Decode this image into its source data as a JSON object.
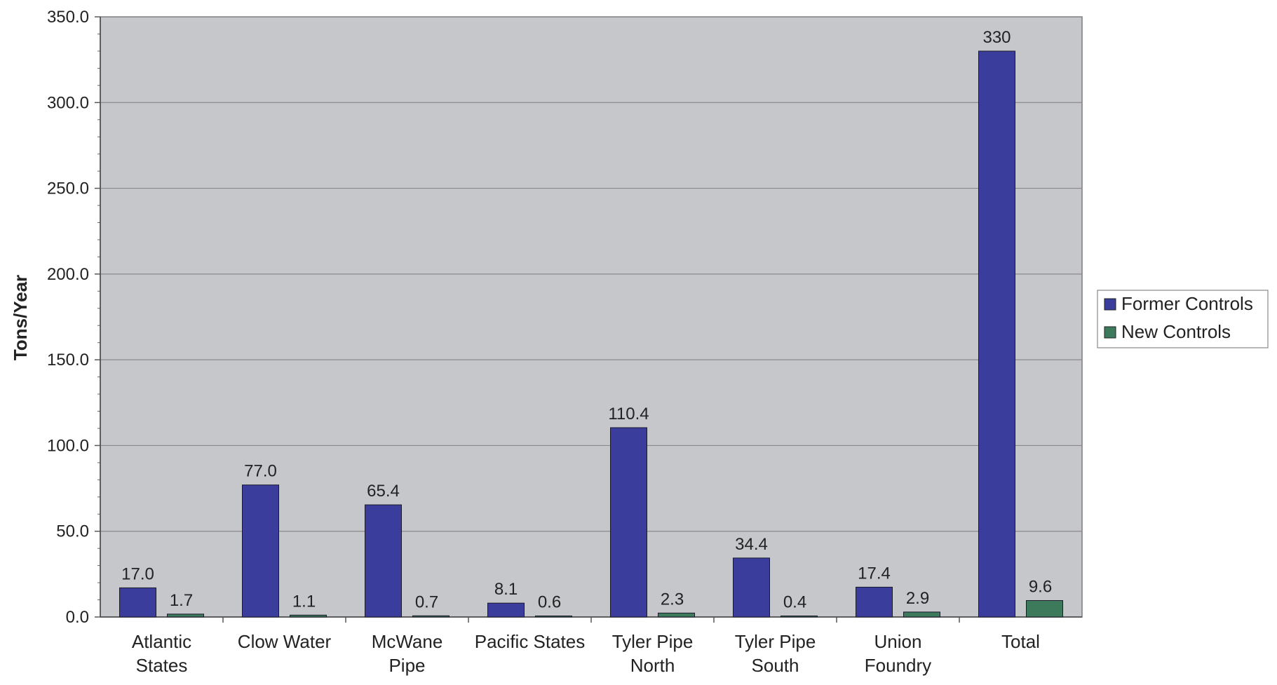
{
  "chart_data": {
    "type": "bar",
    "title": "",
    "xlabel": "",
    "ylabel": "Tons/Year",
    "ylim": [
      0,
      350
    ],
    "yticks": [
      "0.0",
      "50.0",
      "100.0",
      "150.0",
      "200.0",
      "250.0",
      "300.0",
      "350.0"
    ],
    "grid": true,
    "legend_position": "right",
    "categories": [
      "Atlantic States",
      "Clow Water",
      "McWane Pipe",
      "Pacific States",
      "Tyler Pipe North",
      "Tyler Pipe South",
      "Union Foundry",
      "Total"
    ],
    "series": [
      {
        "name": "Former Controls",
        "color": "#3b3d9c",
        "values": [
          17.0,
          77.0,
          65.4,
          8.1,
          110.4,
          34.4,
          17.4,
          330
        ],
        "labels": [
          "17.0",
          "77.0",
          "65.4",
          "8.1",
          "110.4",
          "34.4",
          "17.4",
          "330"
        ]
      },
      {
        "name": "New Controls",
        "color": "#3d7a5c",
        "values": [
          1.7,
          1.1,
          0.7,
          0.6,
          2.3,
          0.4,
          2.9,
          9.6
        ],
        "labels": [
          "1.7",
          "1.1",
          "0.7",
          "0.6",
          "2.3",
          "0.4",
          "2.9",
          "9.6"
        ]
      }
    ]
  }
}
